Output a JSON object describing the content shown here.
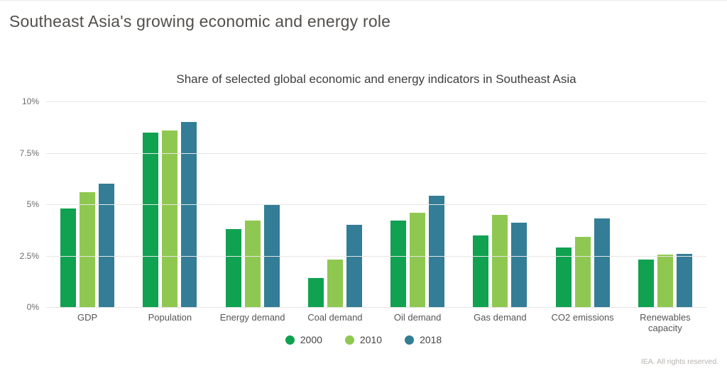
{
  "page_title": "Southeast Asia's growing economic and energy role",
  "footer_note": "IEA. All rights reserved.",
  "chart_data": {
    "type": "bar",
    "title": "Share of selected global economic and energy indicators in Southeast Asia",
    "categories": [
      "GDP",
      "Population",
      "Energy demand",
      "Coal demand",
      "Oil demand",
      "Gas demand",
      "CO2 emissions",
      "Renewables capacity"
    ],
    "series": [
      {
        "name": "2000",
        "color": "#10a151",
        "values": [
          4.8,
          8.5,
          3.8,
          1.4,
          4.2,
          3.5,
          2.9,
          2.3
        ]
      },
      {
        "name": "2010",
        "color": "#8fc850",
        "values": [
          5.6,
          8.6,
          4.2,
          2.3,
          4.6,
          4.5,
          3.4,
          2.55
        ]
      },
      {
        "name": "2018",
        "color": "#337d96",
        "values": [
          6.0,
          9.0,
          5.0,
          4.0,
          5.4,
          4.1,
          4.3,
          2.6
        ]
      }
    ],
    "xlabel": "",
    "ylabel": "",
    "ylim": [
      0,
      10
    ],
    "yticks": [
      {
        "value": 0,
        "label": "0%"
      },
      {
        "value": 2.5,
        "label": "2.5%"
      },
      {
        "value": 5,
        "label": "5%"
      },
      {
        "value": 7.5,
        "label": "7.5%"
      },
      {
        "value": 10,
        "label": "10%"
      }
    ],
    "grid": true,
    "legend_position": "bottom"
  }
}
